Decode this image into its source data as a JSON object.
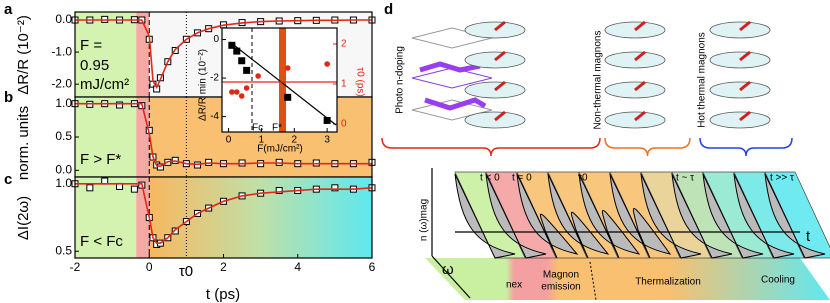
{
  "chart_data": [
    {
      "type": "scatter",
      "label": "a",
      "y_label": "ΔR/R (10⁻²)",
      "annotation": [
        "F =",
        "0.95",
        "mJ/cm²"
      ],
      "x": [
        -2,
        -1.6,
        -1.2,
        -0.8,
        -0.4,
        -0.2,
        0,
        0.1,
        0.2,
        0.3,
        0.5,
        0.7,
        1,
        1.3,
        1.6,
        2,
        2.5,
        3,
        3.5,
        4,
        4.5,
        5,
        5.5,
        6
      ],
      "xlim": [
        -2,
        6
      ],
      "ylim": [
        -2.4,
        0.25
      ],
      "yticks": [
        {
          "value": 0,
          "label": "0.0"
        },
        {
          "value": -1,
          "label": "-1.0"
        },
        {
          "value": -2,
          "label": "-2.0"
        }
      ],
      "series": [
        {
          "color": "#000000",
          "marker": "square-open",
          "values": [
            0,
            0,
            0.02,
            0,
            0.01,
            0,
            -0.6,
            -2.0,
            -2.15,
            -1.8,
            -1.3,
            -0.95,
            -0.6,
            -0.4,
            -0.27,
            -0.15,
            -0.08,
            -0.05,
            -0.03,
            -0.02,
            -0.01,
            0,
            0,
            0
          ]
        },
        {
          "color": "#e02818",
          "values": [
            0,
            0,
            0,
            0,
            0,
            0,
            -0.5,
            -1.9,
            -2.1,
            -1.85,
            -1.3,
            -0.92,
            -0.6,
            -0.4,
            -0.27,
            -0.16,
            -0.09,
            -0.05,
            -0.03,
            -0.02,
            -0.01,
            -0.01,
            0,
            0
          ]
        }
      ]
    },
    {
      "type": "scatter",
      "label": "b",
      "y_label": "norm. units",
      "annotation": [
        "F > F*"
      ],
      "x": [
        -2,
        -1.6,
        -1.2,
        -0.8,
        -0.4,
        -0.2,
        0,
        0.1,
        0.2,
        0.3,
        0.5,
        0.7,
        1,
        1.3,
        1.6,
        2,
        2.5,
        3,
        3.5,
        4,
        4.5,
        5,
        5.5,
        6
      ],
      "xlim": [
        -2,
        6
      ],
      "ylim": [
        -0.1,
        1.1
      ],
      "yticks": [
        {
          "value": 0,
          "label": "0.0"
        },
        0.5,
        {
          "value": 1,
          "label": "1.0"
        }
      ],
      "series": [
        {
          "color": "#000000",
          "marker": "square-open",
          "values": [
            1.0,
            0.99,
            1.0,
            0.98,
            1.0,
            0.97,
            0.6,
            0.2,
            0.08,
            0.05,
            0.12,
            0.15,
            0.1,
            0.08,
            0.12,
            0.1,
            0.11,
            0.1,
            0.12,
            0.1,
            0.11,
            0.1,
            0.1,
            0.12
          ]
        },
        {
          "color": "#e02818",
          "values": [
            1,
            1,
            1,
            1,
            1,
            1,
            0.55,
            0.2,
            0.07,
            0.06,
            0.13,
            0.14,
            0.1,
            0.09,
            0.11,
            0.1,
            0.1,
            0.11,
            0.11,
            0.1,
            0.1,
            0.1,
            0.1,
            0.1
          ]
        }
      ]
    },
    {
      "type": "scatter",
      "label": "c",
      "y_label": "ΔI(2ω)",
      "annotation": [
        "F < Fc"
      ],
      "x_label": "t (ps)",
      "x_annotation": "τ0",
      "x": [
        -2,
        -1.6,
        -1.2,
        -0.8,
        -0.4,
        -0.2,
        0,
        0.1,
        0.2,
        0.3,
        0.5,
        0.7,
        1,
        1.3,
        1.6,
        2,
        2.5,
        3,
        3.5,
        4,
        4.5,
        5,
        5.5,
        6
      ],
      "xlim": [
        -2,
        6
      ],
      "xticks": [
        -2,
        0,
        2,
        4,
        6
      ],
      "ylim": [
        0.45,
        1.05
      ],
      "yticks": [
        {
          "value": 1,
          "label": "1.0"
        },
        0.5
      ],
      "series": [
        {
          "color": "#000000",
          "marker": "square-open",
          "values": [
            1.0,
            0.97,
            1.02,
            0.98,
            0.96,
            0.99,
            0.75,
            0.6,
            0.55,
            0.56,
            0.6,
            0.65,
            0.72,
            0.78,
            0.82,
            0.87,
            0.91,
            0.93,
            0.95,
            0.95,
            0.96,
            0.97,
            0.96,
            0.97
          ]
        },
        {
          "color": "#e02818",
          "values": [
            1,
            1,
            1,
            1,
            1,
            1,
            0.75,
            0.6,
            0.56,
            0.56,
            0.6,
            0.66,
            0.72,
            0.78,
            0.82,
            0.87,
            0.91,
            0.93,
            0.94,
            0.95,
            0.96,
            0.96,
            0.96,
            0.97
          ]
        }
      ]
    },
    {
      "type": "scatter",
      "x_label": "F(mJ/cm²)",
      "y_label": "ΔR/R min (10⁻²)",
      "y2_label": "τ0 (ps)",
      "annotation": [
        "Fc",
        "F*"
      ],
      "x": [
        0.1,
        0.25,
        0.4,
        0.55,
        0.9,
        1.8,
        3.0
      ],
      "xlim": [
        -0.2,
        3.3
      ],
      "xticks": [
        0,
        1,
        2,
        3
      ],
      "ylim": [
        -4.8,
        0.6
      ],
      "yticks": [
        0,
        -2,
        -4
      ],
      "y2lim": [
        -0.2,
        2.4
      ],
      "y2ticks": [
        0,
        1,
        2
      ],
      "series": [
        {
          "color": "#000000",
          "marker": "square-filled",
          "values": [
            -0.3,
            -0.6,
            -1.1,
            -1.6,
            null,
            -3.0,
            -4.2
          ]
        },
        {
          "color": "#e02818",
          "marker": "circle-filled",
          "axis": "y2",
          "values": [
            0.8,
            0.8,
            0.7,
            0.9,
            1.2,
            1.4,
            1.5
          ]
        }
      ]
    }
  ],
  "diagram": {
    "label": "d",
    "row_labels": [
      "Photo n-doping",
      "Non-thermal magnons",
      "Hot thermal magnons"
    ],
    "time_labels": [
      "t < 0",
      "t = 0",
      "τ0",
      "t ~ τ",
      "t >> τ"
    ],
    "axis_labels": [
      "n (ω)mag",
      "ω",
      "t"
    ],
    "phase_labels": [
      "nex",
      "Magnon",
      "emission",
      "Thermalization",
      "Cooling"
    ]
  }
}
